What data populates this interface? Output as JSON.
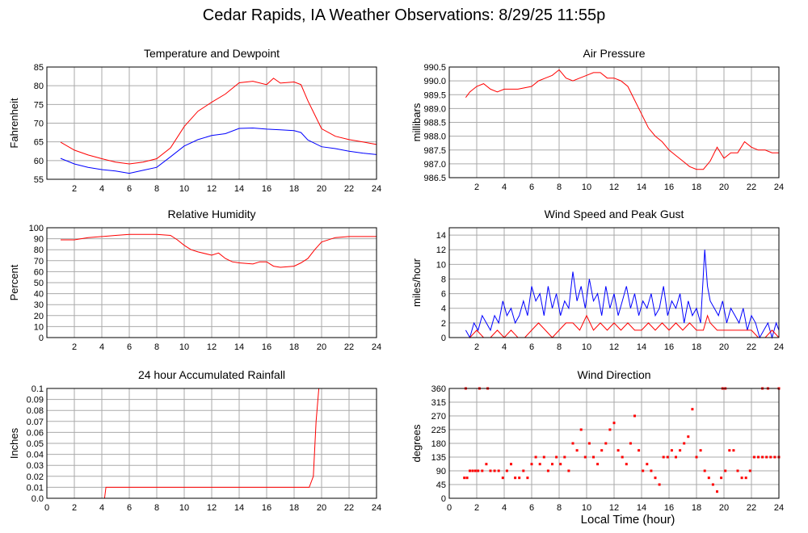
{
  "title": "Cedar Rapids, IA Weather Observations: 8/29/25 11:55p",
  "xlabel": "Local Time (hour)",
  "colors": {
    "red": "#ff0000",
    "blue": "#0000ff",
    "grid": "#aaaaaa"
  },
  "chart_data": [
    {
      "type": "line",
      "title": "Temperature and Dewpoint",
      "ylabel": "Fahrenheit",
      "xlim": [
        0,
        24
      ],
      "ylim": [
        55,
        85
      ],
      "xticks": [
        "2",
        "4",
        "6",
        "8",
        "10",
        "12",
        "14",
        "16",
        "18",
        "20",
        "22",
        "24"
      ],
      "yticks": [
        "55",
        "60",
        "65",
        "70",
        "75",
        "80",
        "85"
      ],
      "series": [
        {
          "color": "#ff0000",
          "x": [
            1,
            2,
            3,
            4,
            5,
            6,
            7,
            8,
            9,
            10,
            11,
            12,
            13,
            14,
            15,
            16,
            16.5,
            17,
            18,
            18.5,
            19,
            20,
            21,
            22,
            23,
            24
          ],
          "values": [
            64.9,
            62.8,
            61.5,
            60.5,
            59.6,
            59.1,
            59.6,
            60.5,
            63.4,
            69.1,
            73.2,
            75.6,
            77.8,
            80.8,
            81.2,
            80.3,
            82.0,
            80.7,
            81.0,
            80.3,
            76.0,
            68.5,
            66.5,
            65.6,
            65.0,
            64.3
          ]
        },
        {
          "color": "#0000ff",
          "x": [
            1,
            2,
            3,
            4,
            5,
            6,
            7,
            8,
            9,
            10,
            11,
            12,
            13,
            14,
            15,
            16,
            17,
            18,
            18.5,
            19,
            20,
            21,
            22,
            23,
            24
          ],
          "values": [
            60.6,
            59.1,
            58.2,
            57.6,
            57.2,
            56.6,
            57.4,
            58.2,
            61.0,
            63.9,
            65.6,
            66.7,
            67.2,
            68.6,
            68.7,
            68.4,
            68.2,
            68.0,
            67.5,
            65.5,
            63.7,
            63.2,
            62.5,
            62.0,
            61.6
          ]
        }
      ]
    },
    {
      "type": "line",
      "title": "Air Pressure",
      "ylabel": "millibars",
      "xlim": [
        0,
        24
      ],
      "ylim": [
        986.5,
        990.5
      ],
      "xticks": [
        "2",
        "4",
        "6",
        "8",
        "10",
        "12",
        "14",
        "16",
        "18",
        "20",
        "22",
        "24"
      ],
      "yticks": [
        "986.5",
        "987.0",
        "987.5",
        "988.0",
        "988.5",
        "989.0",
        "989.5",
        "990.0",
        "990.5"
      ],
      "series": [
        {
          "color": "#ff0000",
          "x": [
            1.2,
            1.5,
            2,
            2.5,
            3,
            3.5,
            4,
            5,
            6,
            6.5,
            7,
            7.5,
            8,
            8.5,
            9,
            9.5,
            10,
            10.5,
            11,
            11.5,
            12,
            12.5,
            13,
            13.5,
            14,
            14.5,
            15,
            15.5,
            16,
            16.5,
            17,
            17.5,
            18,
            18.5,
            19,
            19.5,
            20,
            20.5,
            21,
            21.5,
            22,
            22.5,
            23,
            23.5,
            24
          ],
          "values": [
            989.4,
            989.6,
            989.8,
            989.9,
            989.7,
            989.6,
            989.7,
            989.7,
            989.8,
            990.0,
            990.1,
            990.2,
            990.4,
            990.1,
            990.0,
            990.1,
            990.2,
            990.3,
            990.3,
            990.1,
            990.1,
            990.0,
            989.8,
            989.3,
            988.8,
            988.3,
            988.0,
            987.8,
            987.5,
            987.3,
            987.1,
            986.9,
            986.8,
            986.8,
            987.1,
            987.6,
            987.2,
            987.4,
            987.4,
            987.8,
            987.6,
            987.5,
            987.5,
            987.4,
            987.4
          ]
        }
      ]
    },
    {
      "type": "line",
      "title": "Relative Humidity",
      "ylabel": "Percent",
      "xlim": [
        0,
        24
      ],
      "ylim": [
        0,
        100
      ],
      "xticks": [
        "2",
        "4",
        "6",
        "8",
        "10",
        "12",
        "14",
        "16",
        "18",
        "20",
        "22",
        "24"
      ],
      "yticks": [
        "0",
        "10",
        "20",
        "30",
        "40",
        "50",
        "60",
        "70",
        "80",
        "90",
        "100"
      ],
      "series": [
        {
          "color": "#ff0000",
          "x": [
            1,
            2,
            3,
            4,
            5,
            6,
            7,
            8,
            9,
            9.5,
            10,
            10.5,
            11,
            12,
            12.5,
            13,
            13.5,
            14,
            15,
            15.5,
            16,
            16.5,
            17,
            18,
            18.5,
            19,
            19.5,
            20,
            21,
            22,
            23,
            24
          ],
          "values": [
            89,
            89,
            91,
            92,
            93,
            94,
            94,
            94,
            93,
            89,
            84,
            80,
            78,
            75,
            77,
            72,
            69,
            68,
            67,
            69,
            69,
            65,
            64,
            65,
            68,
            72,
            80,
            87,
            91,
            92,
            92,
            92
          ]
        }
      ]
    },
    {
      "type": "line",
      "title": "Wind Speed and Peak Gust",
      "ylabel": "miles/hour",
      "xlim": [
        0,
        24
      ],
      "ylim": [
        0,
        15
      ],
      "xticks": [
        "2",
        "4",
        "6",
        "8",
        "10",
        "12",
        "14",
        "16",
        "18",
        "20",
        "22",
        "24"
      ],
      "yticks": [
        "0",
        "2",
        "4",
        "6",
        "8",
        "10",
        "12",
        "14"
      ],
      "series": [
        {
          "color": "#0000ff",
          "x": [
            1.2,
            1.5,
            1.8,
            2.1,
            2.4,
            2.7,
            3.0,
            3.3,
            3.6,
            3.9,
            4.2,
            4.5,
            4.8,
            5.1,
            5.4,
            5.7,
            6.0,
            6.3,
            6.6,
            6.9,
            7.2,
            7.5,
            7.8,
            8.1,
            8.4,
            8.7,
            9.0,
            9.3,
            9.6,
            9.9,
            10.2,
            10.5,
            10.8,
            11.1,
            11.4,
            11.7,
            12.0,
            12.3,
            12.6,
            12.9,
            13.2,
            13.5,
            13.8,
            14.1,
            14.4,
            14.7,
            15.0,
            15.3,
            15.6,
            15.9,
            16.2,
            16.5,
            16.8,
            17.1,
            17.4,
            17.7,
            18.0,
            18.3,
            18.6,
            18.8,
            19.0,
            19.3,
            19.6,
            19.9,
            20.2,
            20.5,
            20.8,
            21.1,
            21.4,
            21.7,
            22.0,
            22.3,
            22.6,
            22.9,
            23.2,
            23.5,
            23.8,
            24.0
          ],
          "values": [
            1,
            0,
            2,
            1,
            3,
            2,
            1,
            3,
            2,
            5,
            3,
            4,
            2,
            3,
            5,
            3,
            7,
            5,
            6,
            3,
            7,
            4,
            6,
            3,
            5,
            4,
            9,
            5,
            7,
            4,
            8,
            5,
            6,
            3,
            7,
            4,
            6,
            3,
            5,
            7,
            4,
            6,
            3,
            5,
            4,
            6,
            3,
            4,
            7,
            3,
            5,
            4,
            6,
            2,
            5,
            3,
            4,
            2,
            12,
            7,
            5,
            4,
            3,
            5,
            2,
            4,
            3,
            2,
            4,
            1,
            3,
            2,
            0,
            1,
            2,
            0,
            2,
            1
          ]
        },
        {
          "color": "#ff0000",
          "x": [
            1.2,
            1.5,
            2.0,
            2.5,
            3.0,
            3.5,
            4.0,
            4.5,
            5.0,
            5.5,
            6.0,
            6.5,
            7.0,
            7.5,
            8.0,
            8.5,
            9.0,
            9.5,
            10.0,
            10.5,
            11.0,
            11.5,
            12.0,
            12.5,
            13.0,
            13.5,
            14.0,
            14.5,
            15.0,
            15.5,
            16.0,
            16.5,
            17.0,
            17.5,
            18.0,
            18.5,
            18.8,
            19.0,
            19.5,
            20.0,
            20.5,
            21.0,
            21.5,
            22.0,
            22.5,
            23.0,
            23.5,
            24.0
          ],
          "values": [
            0,
            0,
            1,
            0,
            0,
            1,
            0,
            1,
            0,
            0,
            1,
            2,
            1,
            0,
            1,
            2,
            2,
            1,
            3,
            1,
            2,
            1,
            2,
            1,
            2,
            1,
            1,
            2,
            1,
            2,
            1,
            2,
            1,
            2,
            1,
            1,
            3,
            2,
            1,
            1,
            1,
            1,
            1,
            1,
            0,
            0,
            1,
            0
          ]
        }
      ]
    },
    {
      "type": "line",
      "title": "24 hour Accumulated Rainfall",
      "ylabel": "Inches",
      "xlim": [
        0,
        24
      ],
      "ylim": [
        0,
        0.1
      ],
      "xticks": [
        "0",
        "2",
        "4",
        "6",
        "8",
        "10",
        "12",
        "14",
        "16",
        "18",
        "20",
        "22",
        "24"
      ],
      "yticks": [
        "0.0",
        "0.01",
        "0.02",
        "0.03",
        "0.04",
        "0.05",
        "0.06",
        "0.07",
        "0.08",
        "0.09",
        "0.1"
      ],
      "series": [
        {
          "color": "#ff0000",
          "x": [
            1,
            4.2,
            4.3,
            19.1,
            19.4,
            19.6,
            19.8,
            24
          ],
          "values": [
            0,
            0,
            0.01,
            0.01,
            0.02,
            0.07,
            0.1,
            0.1
          ]
        }
      ]
    },
    {
      "type": "scatter",
      "title": "Wind Direction",
      "ylabel": "degrees",
      "xlim": [
        0,
        24
      ],
      "ylim": [
        0,
        360
      ],
      "xticks": [
        "0",
        "2",
        "4",
        "6",
        "8",
        "10",
        "12",
        "14",
        "16",
        "18",
        "20",
        "22",
        "24"
      ],
      "yticks": [
        "0",
        "45",
        "90",
        "135",
        "180",
        "225",
        "270",
        "315",
        "360"
      ],
      "series": [
        {
          "color": "#ff0000",
          "x": [
            1.1,
            1.3,
            1.5,
            1.7,
            1.9,
            2.1,
            2.4,
            2.7,
            3.0,
            3.3,
            3.6,
            3.9,
            4.2,
            4.5,
            4.8,
            5.1,
            5.4,
            5.7,
            6.0,
            6.3,
            6.6,
            6.9,
            7.2,
            7.5,
            7.8,
            8.1,
            8.4,
            8.7,
            9.0,
            9.3,
            9.6,
            9.9,
            10.2,
            10.5,
            10.8,
            11.1,
            11.4,
            11.7,
            12.0,
            12.3,
            12.6,
            12.9,
            13.2,
            13.5,
            13.8,
            14.1,
            14.4,
            14.7,
            15.0,
            15.3,
            15.6,
            15.9,
            16.2,
            16.5,
            16.8,
            17.1,
            17.4,
            17.7,
            18.0,
            18.3,
            18.6,
            18.9,
            19.2,
            19.5,
            19.8,
            20.1,
            20.4,
            20.7,
            21.0,
            21.3,
            21.6,
            21.9,
            22.2,
            22.5,
            22.8,
            23.1,
            23.4,
            23.7,
            24.0,
            1.2,
            2.2,
            2.8,
            19.9,
            20.1,
            22.8,
            23.2,
            24.0
          ],
          "values": [
            67,
            67,
            90,
            90,
            90,
            90,
            90,
            112,
            90,
            90,
            90,
            67,
            90,
            112,
            67,
            67,
            90,
            67,
            112,
            135,
            112,
            135,
            90,
            112,
            135,
            112,
            135,
            90,
            180,
            157,
            225,
            135,
            180,
            135,
            112,
            157,
            180,
            225,
            247,
            157,
            135,
            112,
            180,
            270,
            157,
            90,
            112,
            90,
            67,
            45,
            135,
            135,
            157,
            135,
            157,
            180,
            202,
            292,
            135,
            157,
            90,
            67,
            45,
            22,
            67,
            90,
            157,
            157,
            90,
            67,
            67,
            90,
            135,
            135,
            135,
            135,
            135,
            135,
            135,
            360,
            360,
            360,
            360,
            360,
            360,
            360,
            360
          ]
        }
      ]
    }
  ]
}
